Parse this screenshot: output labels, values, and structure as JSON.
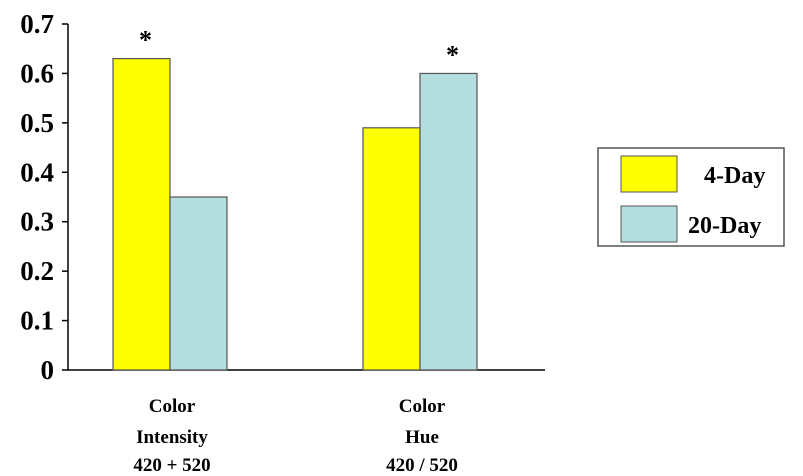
{
  "chart_data": {
    "type": "bar",
    "categories": [
      [
        "Color",
        "Intensity",
        "420 + 520"
      ],
      [
        "Color",
        "Hue",
        "420 / 520"
      ]
    ],
    "series": [
      {
        "name": "4-Day",
        "values": [
          0.63,
          0.49
        ],
        "color": "#ffff00"
      },
      {
        "name": "20-Day",
        "values": [
          0.35,
          0.6
        ],
        "color": "#b4dde0"
      }
    ],
    "y_ticks": [
      "0",
      "0.1",
      "0.2",
      "0.3",
      "0.4",
      "0.5",
      "0.6",
      "0.7"
    ],
    "ylim": [
      0,
      0.7
    ],
    "annotations": [
      {
        "text": "*",
        "category": 0,
        "series": 0
      },
      {
        "text": "*",
        "category": 1,
        "series": 1
      }
    ],
    "legend_position": "right",
    "grid": false
  }
}
